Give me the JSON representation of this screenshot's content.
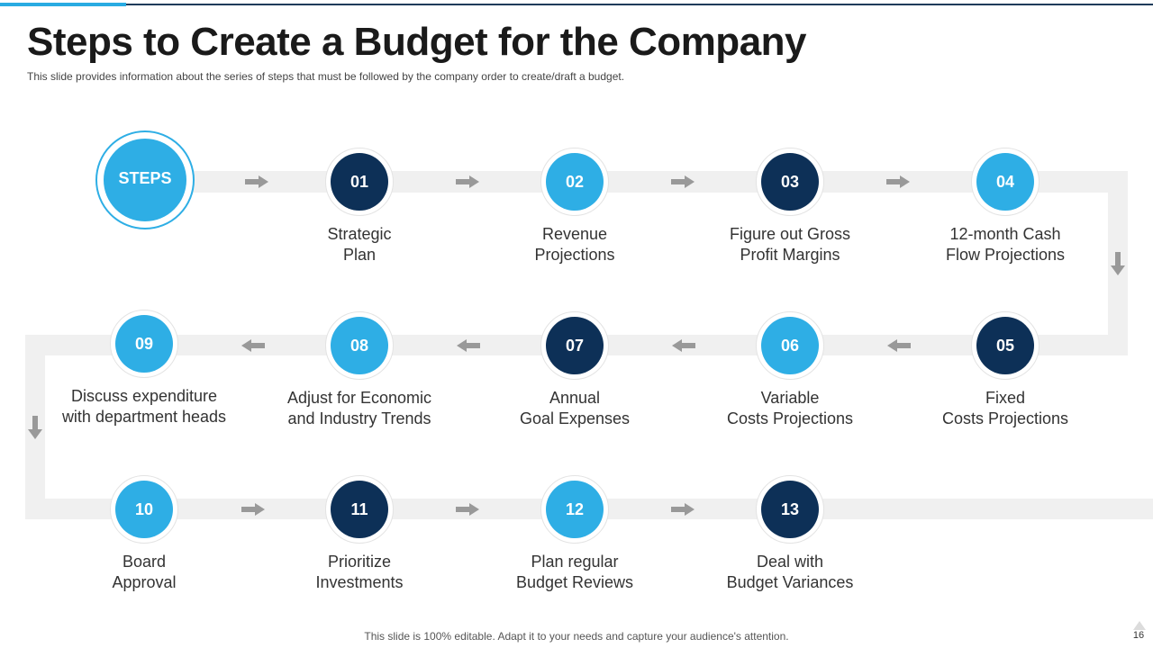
{
  "header": {
    "title": "Steps to Create a Budget for the Company",
    "subtitle": "This slide provides  information  about  the series of steps that must be followed  by the company order to create/draft  a budget."
  },
  "start": {
    "label": "STEPS"
  },
  "steps": [
    {
      "number": "01",
      "line1": "Strategic",
      "line2": "Plan",
      "color": "#0d3057"
    },
    {
      "number": "02",
      "line1": "Revenue",
      "line2": "Projections",
      "color": "#2eaee5"
    },
    {
      "number": "03",
      "line1": "Figure out Gross",
      "line2": "Profit Margins",
      "color": "#0d3057"
    },
    {
      "number": "04",
      "line1": "12-month Cash",
      "line2": "Flow Projections",
      "color": "#2eaee5"
    },
    {
      "number": "05",
      "line1": "Fixed",
      "line2": "Costs Projections",
      "color": "#0d3057"
    },
    {
      "number": "06",
      "line1": "Variable",
      "line2": "Costs Projections",
      "color": "#2eaee5"
    },
    {
      "number": "07",
      "line1": "Annual",
      "line2": "Goal Expenses",
      "color": "#0d3057"
    },
    {
      "number": "08",
      "line1": "Adjust for Economic",
      "line2": "and Industry Trends",
      "color": "#2eaee5"
    },
    {
      "number": "09",
      "line1": "Discuss expenditure",
      "line2": "with department heads",
      "color": "#2eaee5"
    },
    {
      "number": "10",
      "line1": "Board",
      "line2": "Approval",
      "color": "#2eaee5"
    },
    {
      "number": "11",
      "line1": "Prioritize",
      "line2": "Investments",
      "color": "#0d3057"
    },
    {
      "number": "12",
      "line1": "Plan regular",
      "line2": "Budget Reviews",
      "color": "#2eaee5"
    },
    {
      "number": "13",
      "line1": "Deal with",
      "line2": "Budget Variances",
      "color": "#0d3057"
    }
  ],
  "footer": {
    "note": "This slide is 100% editable. Adapt it to your needs and capture your audience's attention.",
    "page_number": "16"
  }
}
